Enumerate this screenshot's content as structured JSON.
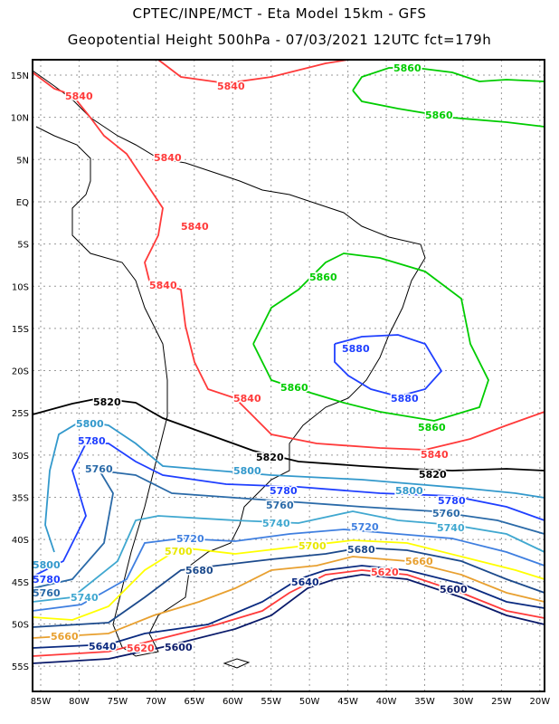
{
  "title_line1": "CPTEC/INPE/MCT -  Eta Model 15km - GFS",
  "title_line2": "Geopotential Height 500hPa - 07/03/2021 12UTC fct=179h",
  "lat_ticks": [
    "15N",
    "10N",
    "5N",
    "EQ",
    "5S",
    "10S",
    "15S",
    "20S",
    "25S",
    "30S",
    "35S",
    "40S",
    "45S",
    "50S",
    "55S"
  ],
  "lon_ticks": [
    "85W",
    "80W",
    "75W",
    "70W",
    "65W",
    "60W",
    "55W",
    "50W",
    "45W",
    "40W",
    "35W",
    "30W",
    "25W",
    "20W"
  ],
  "contours": {
    "c5880": {
      "value": "5880",
      "color": "#2040ff"
    },
    "c5860": {
      "value": "5860",
      "color": "#00cc00"
    },
    "c5840": {
      "value": "5840",
      "color": "#ff3a3a"
    },
    "c5820": {
      "value": "5820",
      "color": "#000000"
    },
    "c5800": {
      "value": "5800",
      "color": "#3399cc"
    },
    "c5780": {
      "value": "5780",
      "color": "#1f3fff"
    },
    "c5760": {
      "value": "5760",
      "color": "#2a6aa8"
    },
    "c5740": {
      "value": "5740",
      "color": "#40a8d0"
    },
    "c5720": {
      "value": "5720",
      "color": "#3f7fe0"
    },
    "c5700": {
      "value": "5700",
      "color": "#ffff00"
    },
    "c5680": {
      "value": "5680",
      "color": "#1c4a8c"
    },
    "c5660": {
      "value": "5660",
      "color": "#e8a030"
    },
    "c5640": {
      "value": "5640",
      "color": "#0a2a80"
    },
    "c5620": {
      "value": "5620",
      "color": "#ff3a3a"
    },
    "c5600": {
      "value": "5600",
      "color": "#0a1a6a"
    }
  }
}
